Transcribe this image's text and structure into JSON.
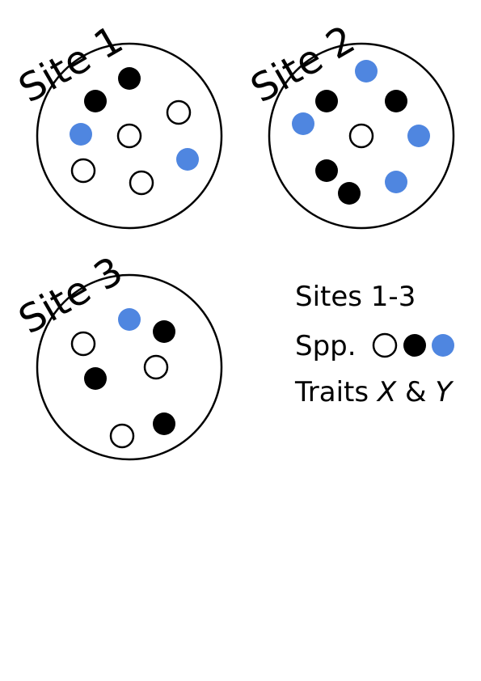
{
  "colors": {
    "black": "#000000",
    "white": "#ffffff",
    "blue": "#4f86e0"
  },
  "sites": [
    {
      "label": "Site 1",
      "individuals": [
        "black",
        "black",
        "white",
        "blue",
        "white",
        "blue",
        "white",
        "white"
      ]
    },
    {
      "label": "Site 2",
      "individuals": [
        "blue",
        "black",
        "black",
        "blue",
        "white",
        "blue",
        "black",
        "blue",
        "black"
      ]
    },
    {
      "label": "Site 3",
      "individuals": [
        "blue",
        "black",
        "white",
        "black",
        "white",
        "white",
        "black"
      ]
    }
  ],
  "legend": {
    "sites_text": "Sites 1-3",
    "spp_text": "Spp.",
    "spp_swatches": [
      "white",
      "black",
      "blue"
    ],
    "traits_prefix": "Traits ",
    "trait_x": "X",
    "amp": " & ",
    "trait_y": "Y"
  }
}
